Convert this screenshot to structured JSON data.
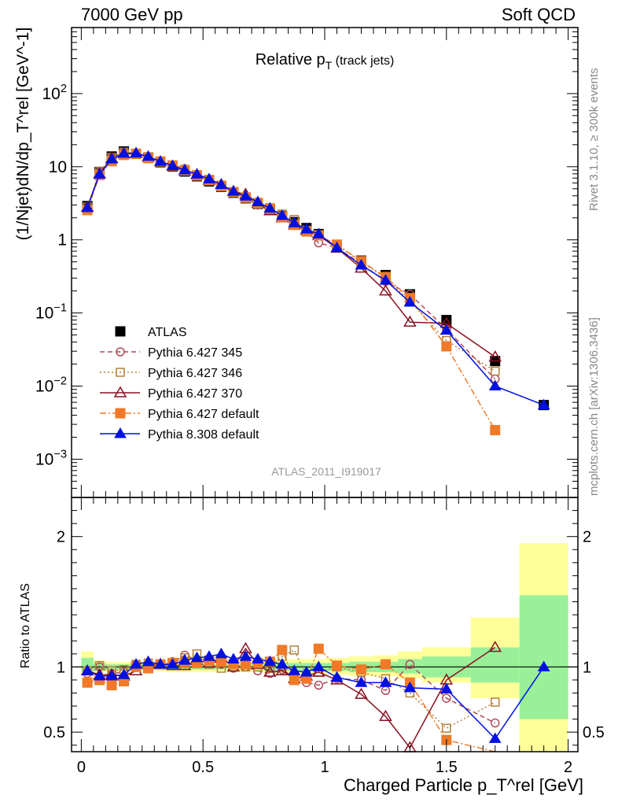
{
  "header": {
    "left": "7000 GeV pp",
    "right": "Soft QCD"
  },
  "side_labels": {
    "top": "Rivet 3.1.10, ≥ 300k events",
    "bottom": "mcplots.cern.ch [arXiv:1306.3436]"
  },
  "chart_data": [
    {
      "panel": "main",
      "type": "line",
      "title_main": "Relative p",
      "title_sub": "T",
      "title_suffix": "(track jets)",
      "ylabel": "(1/Njet)dN/dp_T^rel [GeV^-1]",
      "analysis_tag": "ATLAS_2011_I919017",
      "yscale": "log",
      "xlim": [
        -0.04,
        2.04
      ],
      "ylim": [
        0.0003,
        800
      ],
      "yticks": [
        {
          "value": 0.001,
          "base": "10",
          "exp": "−3"
        },
        {
          "value": 0.01,
          "base": "10",
          "exp": "−2"
        },
        {
          "value": 0.1,
          "base": "10",
          "exp": "−1"
        },
        {
          "value": 1,
          "base": "1",
          "exp": ""
        },
        {
          "value": 10,
          "base": "10",
          "exp": ""
        },
        {
          "value": 100,
          "base": "10",
          "exp": "2"
        }
      ],
      "legend_position": "lower-left",
      "series": [
        {
          "name": "ATLAS",
          "color": "#000000",
          "marker": "square-filled",
          "line": "none",
          "x": [
            0.025,
            0.075,
            0.125,
            0.175,
            0.225,
            0.275,
            0.325,
            0.375,
            0.425,
            0.475,
            0.525,
            0.575,
            0.625,
            0.675,
            0.725,
            0.775,
            0.825,
            0.875,
            0.925,
            0.975,
            1.05,
            1.15,
            1.25,
            1.35,
            1.5,
            1.7,
            1.9
          ],
          "y": [
            2.9,
            8.5,
            13.8,
            16.2,
            15.0,
            13.3,
            11.5,
            10.1,
            8.6,
            7.4,
            6.3,
            5.3,
            4.4,
            3.7,
            3.1,
            2.6,
            2.1,
            1.75,
            1.45,
            1.2,
            0.85,
            0.52,
            0.33,
            0.18,
            0.08,
            0.022,
            0.0055
          ]
        },
        {
          "name": "Pythia 6.427 345",
          "color": "#b04a5a",
          "marker": "circle-open",
          "line": "dashed",
          "x": [
            0.025,
            0.075,
            0.125,
            0.175,
            0.225,
            0.275,
            0.325,
            0.375,
            0.425,
            0.475,
            0.525,
            0.575,
            0.625,
            0.675,
            0.725,
            0.775,
            0.825,
            0.875,
            0.925,
            0.975,
            1.05,
            1.15,
            1.25,
            1.35,
            1.5,
            1.7
          ],
          "y": [
            2.7,
            8.4,
            13.2,
            15.7,
            15.4,
            13.2,
            11.7,
            10.5,
            9.4,
            7.7,
            6.6,
            5.4,
            4.4,
            3.7,
            3.0,
            2.5,
            2.05,
            1.6,
            1.3,
            0.91,
            0.78,
            0.47,
            0.27,
            0.18,
            0.06,
            0.0125
          ]
        },
        {
          "name": "Pythia 6.427 346",
          "color": "#b5803a",
          "marker": "square-open",
          "line": "dotted",
          "x": [
            0.025,
            0.075,
            0.125,
            0.175,
            0.225,
            0.275,
            0.325,
            0.375,
            0.425,
            0.475,
            0.525,
            0.575,
            0.625,
            0.675,
            0.725,
            0.775,
            0.825,
            0.875,
            0.925,
            0.975,
            1.05,
            1.15,
            1.25,
            1.35,
            1.5,
            1.7
          ],
          "y": [
            2.8,
            8.6,
            13.4,
            15.8,
            15.3,
            13.7,
            11.8,
            10.4,
            9.2,
            7.8,
            6.4,
            5.3,
            4.5,
            3.7,
            3.1,
            2.6,
            2.25,
            1.9,
            1.35,
            1.15,
            0.85,
            0.5,
            0.3,
            0.145,
            0.042,
            0.016
          ]
        },
        {
          "name": "Pythia 6.427 370",
          "color": "#8b1020",
          "marker": "triangle-open",
          "line": "solid",
          "x": [
            0.025,
            0.075,
            0.125,
            0.175,
            0.225,
            0.275,
            0.325,
            0.375,
            0.425,
            0.475,
            0.525,
            0.575,
            0.625,
            0.675,
            0.725,
            0.775,
            0.825,
            0.875,
            0.925,
            0.975,
            1.05,
            1.15,
            1.25,
            1.35,
            1.5,
            1.7
          ],
          "y": [
            2.8,
            8.0,
            13.0,
            15.0,
            15.2,
            13.5,
            11.7,
            10.2,
            8.7,
            7.8,
            6.5,
            5.7,
            4.6,
            4.2,
            3.15,
            2.5,
            2.0,
            1.6,
            1.35,
            1.15,
            0.77,
            0.41,
            0.2,
            0.075,
            0.072,
            0.025
          ]
        },
        {
          "name": "Pythia 6.427 default",
          "color": "#f07a28",
          "marker": "square-filled",
          "line": "dashdot",
          "x": [
            0.025,
            0.075,
            0.125,
            0.175,
            0.225,
            0.275,
            0.325,
            0.375,
            0.425,
            0.475,
            0.525,
            0.575,
            0.625,
            0.675,
            0.725,
            0.775,
            0.825,
            0.875,
            0.925,
            0.975,
            1.05,
            1.15,
            1.25,
            1.35,
            1.5,
            1.7
          ],
          "y": [
            2.55,
            7.7,
            11.9,
            14.5,
            15.0,
            13.1,
            11.8,
            10.4,
            8.9,
            7.6,
            6.6,
            5.5,
            4.5,
            3.8,
            3.2,
            2.7,
            2.05,
            1.6,
            1.3,
            1.15,
            0.86,
            0.51,
            0.31,
            0.16,
            0.035,
            0.0025
          ]
        },
        {
          "name": "Pythia 8.308 default",
          "color": "#0010e0",
          "marker": "triangle-filled",
          "line": "solid",
          "x": [
            0.025,
            0.075,
            0.125,
            0.175,
            0.225,
            0.275,
            0.325,
            0.375,
            0.425,
            0.475,
            0.525,
            0.575,
            0.625,
            0.675,
            0.725,
            0.775,
            0.825,
            0.875,
            0.925,
            0.975,
            1.05,
            1.15,
            1.25,
            1.35,
            1.5,
            1.7,
            1.9
          ],
          "y": [
            2.75,
            7.9,
            12.7,
            15.2,
            15.3,
            13.8,
            11.8,
            10.3,
            9.0,
            7.9,
            6.8,
            5.7,
            4.6,
            3.95,
            3.3,
            2.7,
            2.15,
            1.7,
            1.4,
            1.2,
            0.78,
            0.45,
            0.28,
            0.14,
            0.058,
            0.01,
            0.0055
          ]
        }
      ]
    },
    {
      "panel": "ratio",
      "type": "line",
      "xlabel": "Charged Particle p_T^rel [GeV]",
      "ylabel": "Ratio to ATLAS",
      "xlim": [
        -0.04,
        2.04
      ],
      "ylim": [
        0.35,
        2.3
      ],
      "xticks": [
        0,
        0.5,
        1,
        1.5,
        2
      ],
      "xtick_labels": [
        "0",
        "0.5",
        "1",
        "1.5",
        "2"
      ],
      "yticks": [
        0.5,
        1,
        2
      ],
      "ytick_labels": [
        "0.5",
        "1",
        "2"
      ],
      "bands": {
        "x_edges": [
          0,
          0.05,
          0.1,
          0.15,
          0.2,
          0.25,
          0.3,
          0.35,
          0.4,
          0.45,
          0.5,
          0.55,
          0.6,
          0.65,
          0.7,
          0.75,
          0.8,
          0.85,
          0.9,
          0.95,
          1.0,
          1.1,
          1.2,
          1.3,
          1.4,
          1.6,
          1.8,
          2.0
        ],
        "green_low": [
          0.96,
          0.97,
          0.98,
          0.98,
          0.98,
          0.98,
          0.98,
          0.98,
          0.98,
          0.98,
          0.98,
          0.98,
          0.98,
          0.98,
          0.98,
          0.97,
          0.97,
          0.97,
          0.97,
          0.97,
          0.97,
          0.96,
          0.96,
          0.95,
          0.92,
          0.88,
          0.6
        ],
        "green_high": [
          1.07,
          1.03,
          1.02,
          1.02,
          1.02,
          1.02,
          1.02,
          1.02,
          1.02,
          1.02,
          1.02,
          1.02,
          1.02,
          1.02,
          1.02,
          1.03,
          1.03,
          1.03,
          1.03,
          1.03,
          1.03,
          1.04,
          1.04,
          1.06,
          1.08,
          1.15,
          1.55
        ],
        "yellow_low": [
          0.93,
          0.96,
          0.96,
          0.96,
          0.97,
          0.97,
          0.97,
          0.96,
          0.96,
          0.96,
          0.96,
          0.96,
          0.96,
          0.96,
          0.96,
          0.95,
          0.95,
          0.95,
          0.95,
          0.95,
          0.94,
          0.93,
          0.93,
          0.91,
          0.88,
          0.76,
          0.35
        ],
        "yellow_high": [
          1.12,
          1.05,
          1.04,
          1.04,
          1.04,
          1.04,
          1.04,
          1.04,
          1.04,
          1.05,
          1.05,
          1.05,
          1.05,
          1.05,
          1.05,
          1.06,
          1.06,
          1.06,
          1.06,
          1.06,
          1.07,
          1.08,
          1.09,
          1.12,
          1.15,
          1.38,
          1.95
        ]
      },
      "series": [
        {
          "name": "Pythia 6.427 345",
          "x": [
            0.025,
            0.075,
            0.125,
            0.175,
            0.225,
            0.275,
            0.325,
            0.375,
            0.425,
            0.475,
            0.525,
            0.575,
            0.625,
            0.675,
            0.725,
            0.775,
            0.825,
            0.875,
            0.925,
            0.975,
            1.05,
            1.15,
            1.25,
            1.35,
            1.5,
            1.7
          ],
          "y": [
            0.95,
            1.0,
            0.95,
            0.96,
            1.02,
            1.0,
            1.02,
            1.04,
            1.09,
            1.05,
            1.05,
            1.02,
            0.99,
            1.0,
            0.97,
            0.95,
            0.98,
            0.92,
            0.88,
            0.86,
            0.91,
            0.9,
            0.82,
            1.02,
            0.76,
            0.57
          ]
        },
        {
          "name": "Pythia 6.427 346",
          "x": [
            0.025,
            0.075,
            0.125,
            0.175,
            0.225,
            0.275,
            0.325,
            0.375,
            0.425,
            0.475,
            0.525,
            0.575,
            0.625,
            0.675,
            0.725,
            0.775,
            0.825,
            0.875,
            0.925,
            0.975,
            1.05,
            1.15,
            1.25,
            1.35,
            1.5,
            1.7
          ],
          "y": [
            0.97,
            1.01,
            0.97,
            0.98,
            1.02,
            1.03,
            1.02,
            1.03,
            1.07,
            1.1,
            1.02,
            0.99,
            1.02,
            1.0,
            1.0,
            1.0,
            1.08,
            1.13,
            0.93,
            0.96,
            1.0,
            0.96,
            0.91,
            0.8,
            0.53,
            0.73
          ]
        },
        {
          "name": "Pythia 6.427 370",
          "x": [
            0.025,
            0.075,
            0.125,
            0.175,
            0.225,
            0.275,
            0.325,
            0.375,
            0.425,
            0.475,
            0.525,
            0.575,
            0.625,
            0.675,
            0.725,
            0.775,
            0.825,
            0.875,
            0.925,
            0.975,
            1.05,
            1.15,
            1.25,
            1.35,
            1.5,
            1.7
          ],
          "y": [
            0.97,
            0.94,
            0.94,
            0.93,
            0.97,
            1.02,
            1.02,
            1.01,
            1.01,
            1.05,
            1.03,
            1.07,
            1.0,
            1.14,
            1.02,
            0.96,
            0.97,
            0.91,
            0.93,
            0.96,
            0.9,
            0.79,
            0.62,
            0.38,
            0.9,
            1.15
          ]
        },
        {
          "name": "Pythia 6.427 default",
          "x": [
            0.025,
            0.075,
            0.125,
            0.175,
            0.225,
            0.275,
            0.325,
            0.375,
            0.425,
            0.475,
            0.525,
            0.575,
            0.625,
            0.675,
            0.725,
            0.775,
            0.825,
            0.875,
            0.925,
            0.975,
            1.05,
            1.15,
            1.25,
            1.35,
            1.5,
            1.7
          ],
          "y": [
            0.88,
            0.9,
            0.86,
            0.89,
            1.0,
            0.99,
            1.02,
            1.03,
            1.03,
            1.03,
            1.05,
            1.04,
            1.02,
            1.02,
            1.03,
            1.04,
            1.13,
            0.9,
            0.91,
            1.14,
            1.01,
            0.98,
            1.02,
            0.88,
            0.44,
            0.11
          ]
        },
        {
          "name": "Pythia 8.308 default",
          "x": [
            0.025,
            0.075,
            0.125,
            0.175,
            0.225,
            0.275,
            0.325,
            0.375,
            0.425,
            0.475,
            0.525,
            0.575,
            0.625,
            0.675,
            0.725,
            0.775,
            0.825,
            0.875,
            0.925,
            0.975,
            1.05,
            1.15,
            1.25,
            1.35,
            1.5,
            1.7,
            1.9
          ],
          "y": [
            0.97,
            0.93,
            0.93,
            0.94,
            1.02,
            1.04,
            1.02,
            1.02,
            1.05,
            1.07,
            1.08,
            1.1,
            1.06,
            1.08,
            1.06,
            1.04,
            1.02,
            0.97,
            0.96,
            1.0,
            0.92,
            0.88,
            0.88,
            0.84,
            0.83,
            0.45,
            1.0
          ]
        }
      ]
    }
  ]
}
